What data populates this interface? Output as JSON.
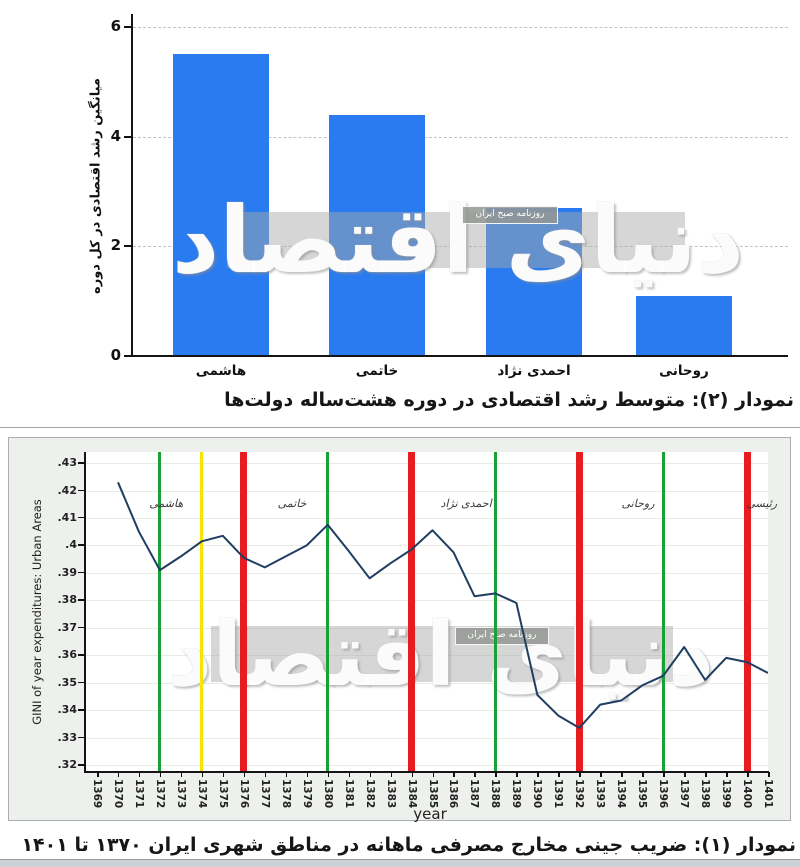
{
  "page": {
    "watermark": {
      "main": "دنیای اقتصاد",
      "badge": "روزنامه صبح ایران"
    }
  },
  "chart_data": [
    {
      "id": "average-growth-by-government",
      "type": "bar",
      "caption": "نمودار (۲): متوسط رشد اقتصادی در دوره هشت‌ساله دولت‌ها",
      "ylabel": "میانگین رشد اقتصادی در کل دوره",
      "categories": [
        "هاشمی",
        "خاتمی",
        "احمدی نژاد",
        "روحانی"
      ],
      "values": [
        5.5,
        4.4,
        2.7,
        1.1
      ],
      "ylim": [
        0,
        6
      ],
      "yticks": [
        0,
        2,
        4,
        6
      ],
      "grid": "horizontal-dashed",
      "bar_color": "#2a7bf0"
    },
    {
      "id": "gini-urban-areas",
      "type": "line",
      "caption": "نمودار (۱): ضریب جینی مخارج مصرفی ماهانه در مناطق شهری ایران ۱۳۷۰ تا ۱۴۰۱",
      "xlabel": "year",
      "ylabel": "GINI of year expenditures: Urban Areas",
      "ylim": [
        0.32,
        0.43
      ],
      "ytick_labels": [
        ".32",
        ".33",
        ".34",
        ".35",
        ".36",
        ".37",
        ".38",
        ".39",
        ".4",
        ".41",
        ".42",
        ".43"
      ],
      "x_ticks": [
        1369,
        1370,
        1371,
        1372,
        1373,
        1374,
        1375,
        1376,
        1377,
        1378,
        1379,
        1380,
        1381,
        1382,
        1383,
        1384,
        1385,
        1386,
        1387,
        1388,
        1389,
        1390,
        1391,
        1392,
        1393,
        1394,
        1395,
        1396,
        1397,
        1398,
        1399,
        1400,
        1401
      ],
      "x": [
        1370,
        1371,
        1372,
        1373,
        1374,
        1375,
        1376,
        1377,
        1378,
        1379,
        1380,
        1381,
        1382,
        1383,
        1384,
        1385,
        1386,
        1387,
        1388,
        1389,
        1390,
        1391,
        1392,
        1393,
        1394,
        1395,
        1396,
        1397,
        1398,
        1399,
        1400,
        1401
      ],
      "y": [
        0.423,
        0.405,
        0.391,
        0.396,
        0.4015,
        0.4035,
        0.3955,
        0.392,
        0.396,
        0.4,
        0.4075,
        0.398,
        0.388,
        0.3935,
        0.3985,
        0.4055,
        0.3975,
        0.3815,
        0.3825,
        0.379,
        0.3455,
        0.338,
        0.3335,
        0.342,
        0.3435,
        0.349,
        0.3525,
        0.363,
        0.351,
        0.359,
        0.3575,
        0.3535
      ],
      "line_color": "#1f3e61",
      "grid": "horizontal-solid",
      "vlines": [
        {
          "x": 1372,
          "color": "#18a235",
          "width": 3
        },
        {
          "x": 1374,
          "color": "#f7e400",
          "width": 3
        },
        {
          "x": 1376,
          "color": "#e81b1e",
          "width": 7
        },
        {
          "x": 1380,
          "color": "#18a235",
          "width": 3
        },
        {
          "x": 1384,
          "color": "#e81b1e",
          "width": 7
        },
        {
          "x": 1388,
          "color": "#18a235",
          "width": 3
        },
        {
          "x": 1392,
          "color": "#e81b1e",
          "width": 7
        },
        {
          "x": 1396,
          "color": "#18a235",
          "width": 3
        },
        {
          "x": 1400,
          "color": "#e81b1e",
          "width": 7
        }
      ],
      "annotations": [
        {
          "text": "هاشمی",
          "x": 1372.3
        },
        {
          "text": "خاتمی",
          "x": 1378.3
        },
        {
          "text": "احمدی نژاد",
          "x": 1386.6
        },
        {
          "text": "روحانی",
          "x": 1394.8
        },
        {
          "text": "رئیسی",
          "x": 1400.7
        }
      ]
    }
  ]
}
